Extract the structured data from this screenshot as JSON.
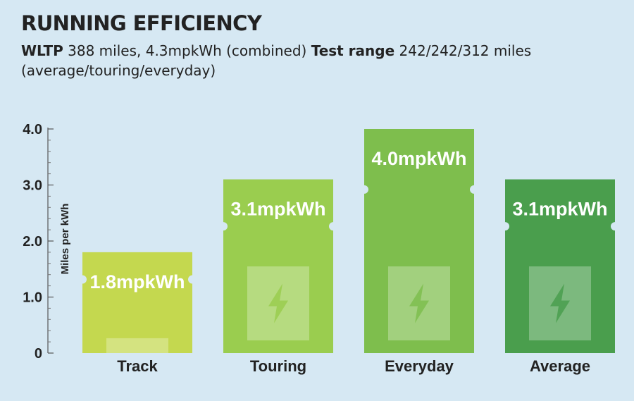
{
  "title": "RUNNING EFFICIENCY",
  "subtitle": {
    "wltp_label": "WLTP",
    "wltp_value": " 388 miles, 4.3mpkWh (combined) ",
    "test_label": "Test range",
    "test_value": " 242/242/312 miles (average/touring/everyday)"
  },
  "chart_data": {
    "type": "bar",
    "categories": [
      "Track",
      "Touring",
      "Everyday",
      "Average"
    ],
    "values": [
      1.8,
      3.1,
      4.0,
      3.1
    ],
    "data_labels": [
      "1.8mpkWh",
      "3.1mpkWh",
      "4.0mpkWh",
      "3.1mpkWh"
    ],
    "colors": [
      "#c4d84f",
      "#9acd4f",
      "#7ebe4d",
      "#4a9e4d"
    ],
    "xlabel": "",
    "ylabel": "Miles per kWh",
    "ylim": [
      0,
      4.0
    ],
    "yticks": [
      0,
      1.0,
      2.0,
      3.0,
      4.0
    ],
    "ytick_labels": [
      "0",
      "1.0",
      "2.0",
      "3.0",
      "4.0"
    ],
    "grid": false,
    "legend": "none"
  },
  "icons": {
    "bar_icon": "lightning-bolt-icon"
  },
  "colors": {
    "background": "#d6e8f3",
    "text": "#222222",
    "bar_label": "#ffffff"
  }
}
